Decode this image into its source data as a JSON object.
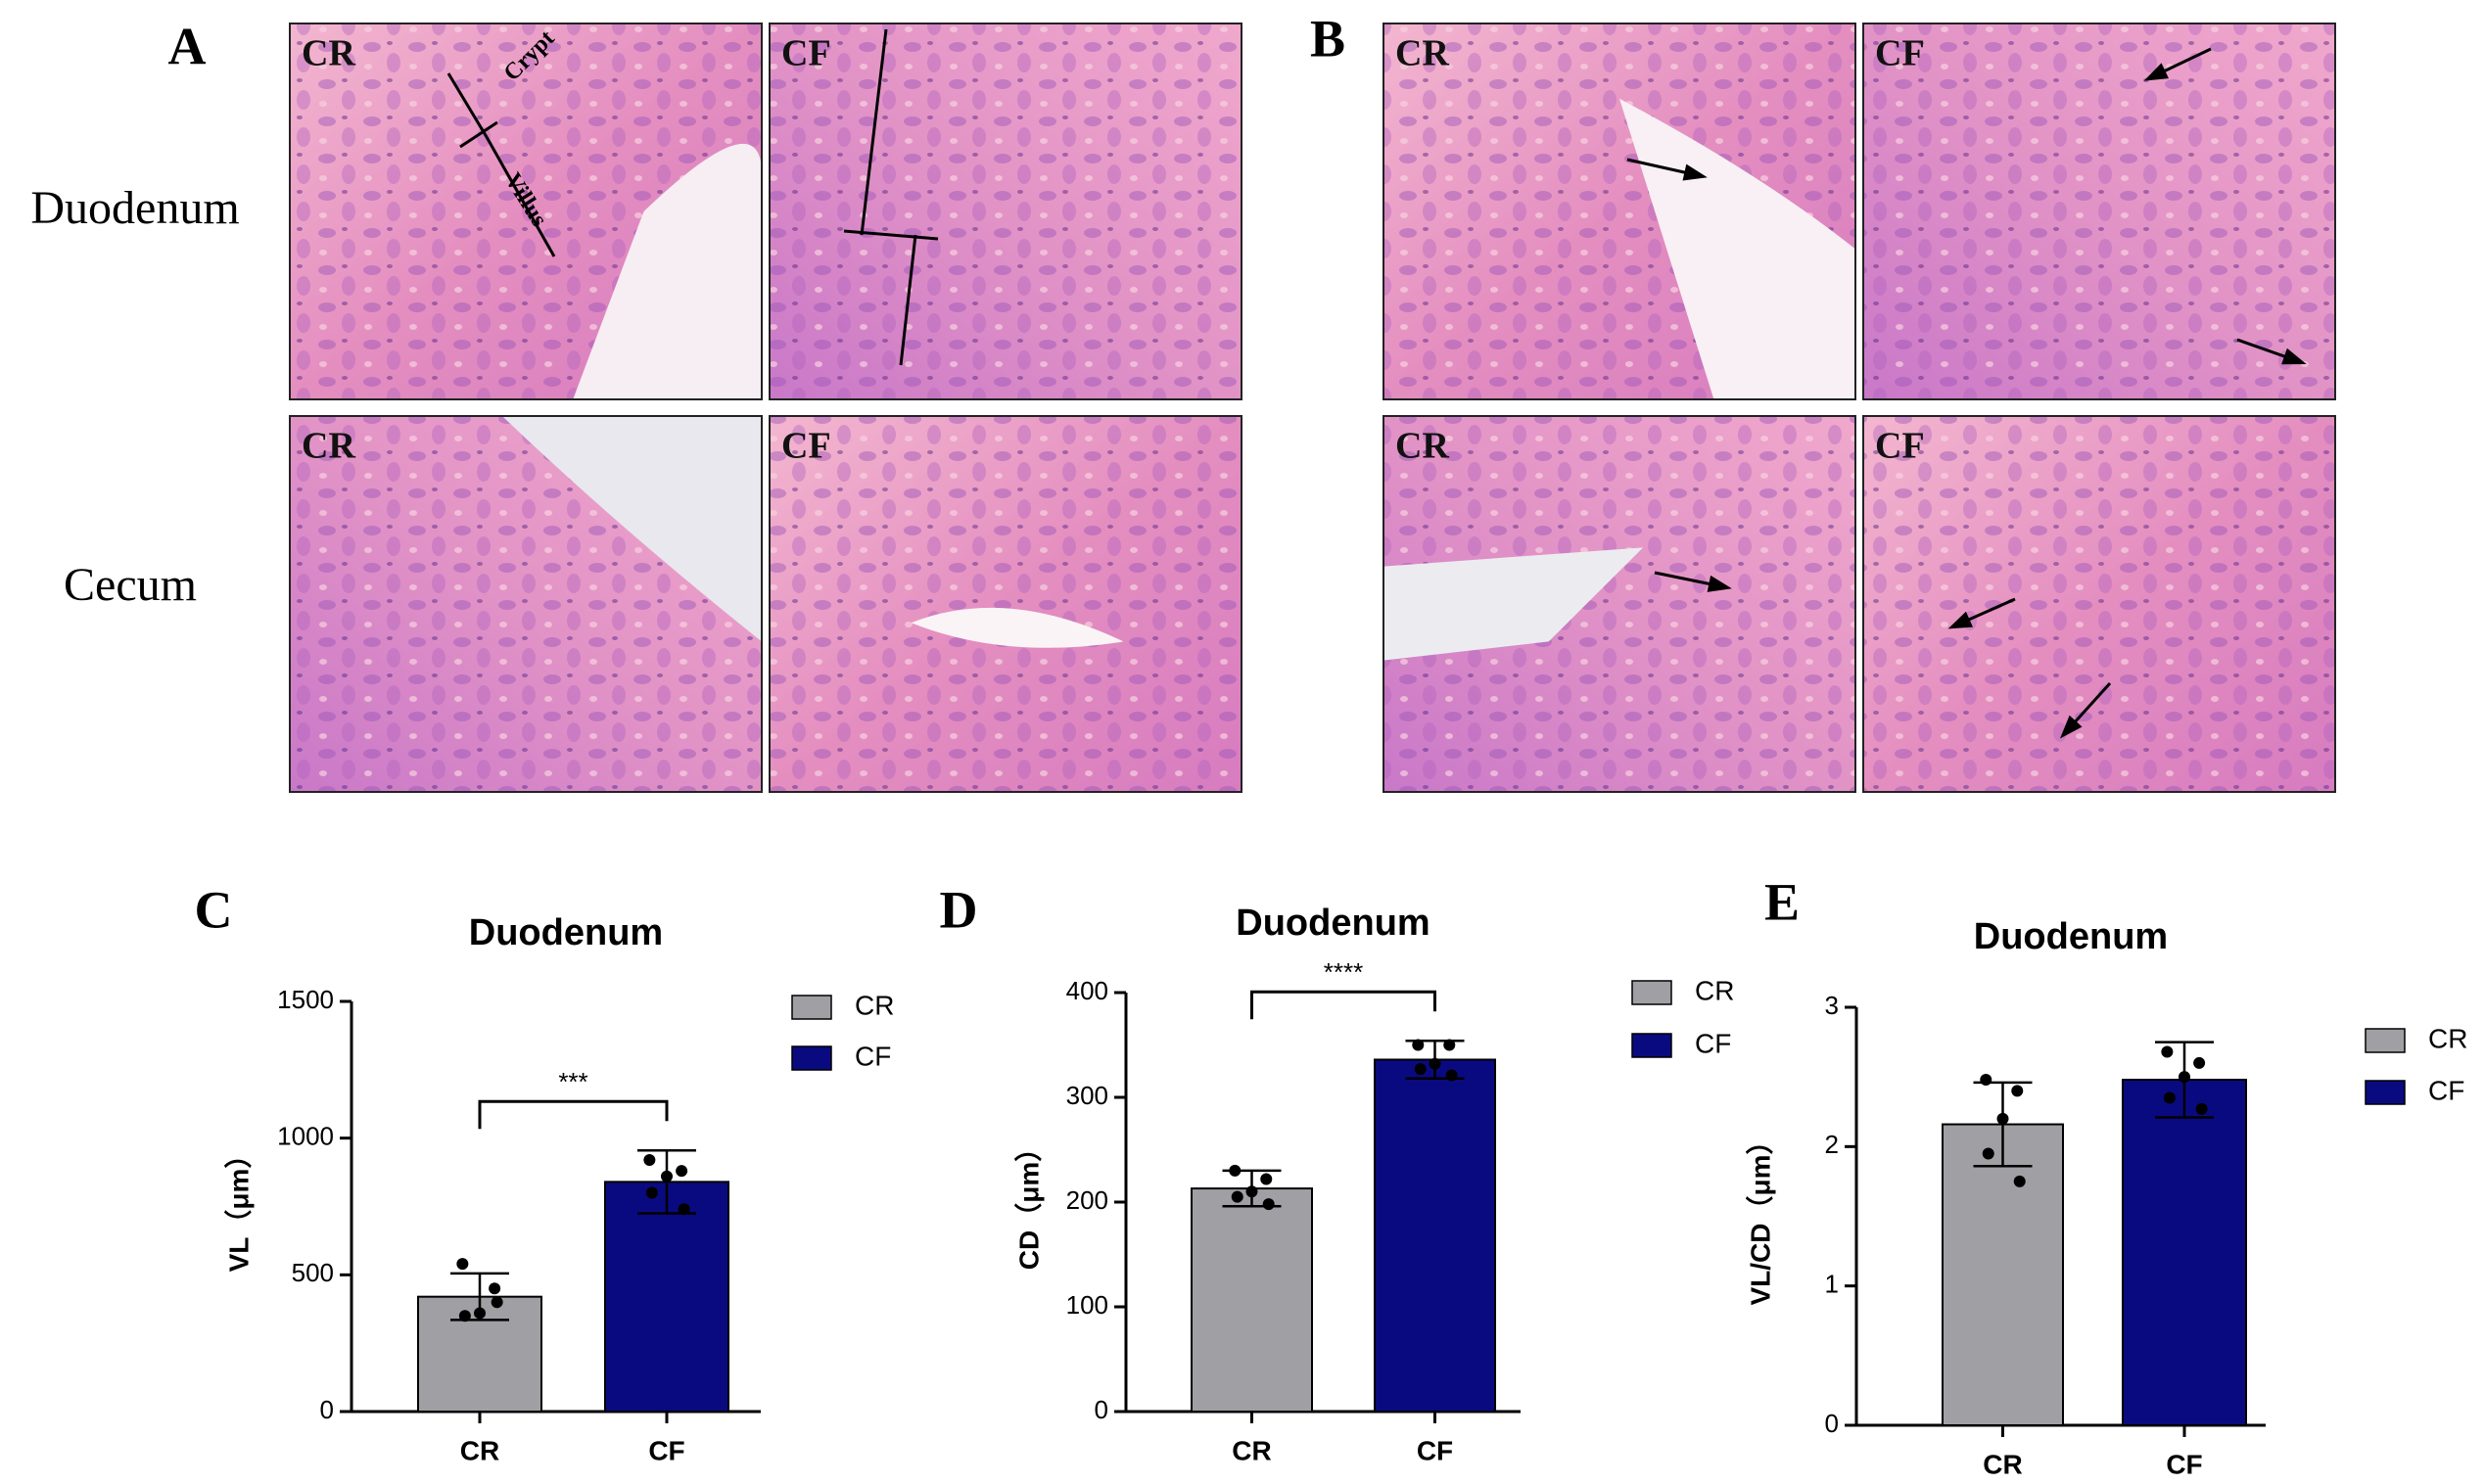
{
  "figure": {
    "panel_labels": [
      "A",
      "B",
      "C",
      "D",
      "E"
    ],
    "row_labels": [
      "Duodenum",
      "Cecum"
    ],
    "histology": {
      "A": [
        [
          "CR",
          "CF"
        ],
        [
          "CR",
          "CF"
        ]
      ],
      "B": [
        [
          "CR",
          "CF"
        ],
        [
          "CR",
          "CF"
        ]
      ]
    },
    "crypt": "Crypt",
    "villus": "Villus"
  },
  "chart_data": [
    {
      "type": "bar",
      "title": "Duodenum",
      "ylabel": "VL（μm）",
      "categories": [
        "CR",
        "CF"
      ],
      "values": [
        420,
        840
      ],
      "errors": [
        85,
        115
      ],
      "colors": [
        "#a0a0a4",
        "#0a0a80"
      ],
      "points": [
        [
          540,
          450,
          360,
          350,
          400
        ],
        [
          920,
          880,
          860,
          800,
          740
        ]
      ],
      "significance": "***",
      "ylim": [
        0,
        1500
      ],
      "yticks": [
        0,
        500,
        1000,
        1500
      ]
    },
    {
      "type": "bar",
      "title": "Duodenum",
      "ylabel": "CD（μm）",
      "categories": [
        "CR",
        "CF"
      ],
      "values": [
        213,
        336
      ],
      "errors": [
        17,
        18
      ],
      "colors": [
        "#a0a0a4",
        "#0a0a80"
      ],
      "points": [
        [
          230,
          222,
          210,
          205,
          198
        ],
        [
          350,
          350,
          332,
          327,
          321
        ]
      ],
      "significance": "****",
      "ylim": [
        0,
        400
      ],
      "yticks": [
        0,
        100,
        200,
        300,
        400
      ]
    },
    {
      "type": "bar",
      "title": "Duodenum",
      "ylabel": "VL/CD（μm）",
      "categories": [
        "CR",
        "CF"
      ],
      "values": [
        2.16,
        2.48
      ],
      "errors": [
        0.3,
        0.27
      ],
      "colors": [
        "#a0a0a4",
        "#0a0a80"
      ],
      "points": [
        [
          2.48,
          2.4,
          2.2,
          1.95,
          1.75
        ],
        [
          2.68,
          2.6,
          2.5,
          2.35,
          2.27
        ]
      ],
      "ylim": [
        0,
        3
      ],
      "yticks": [
        0,
        1,
        2,
        3
      ]
    }
  ]
}
